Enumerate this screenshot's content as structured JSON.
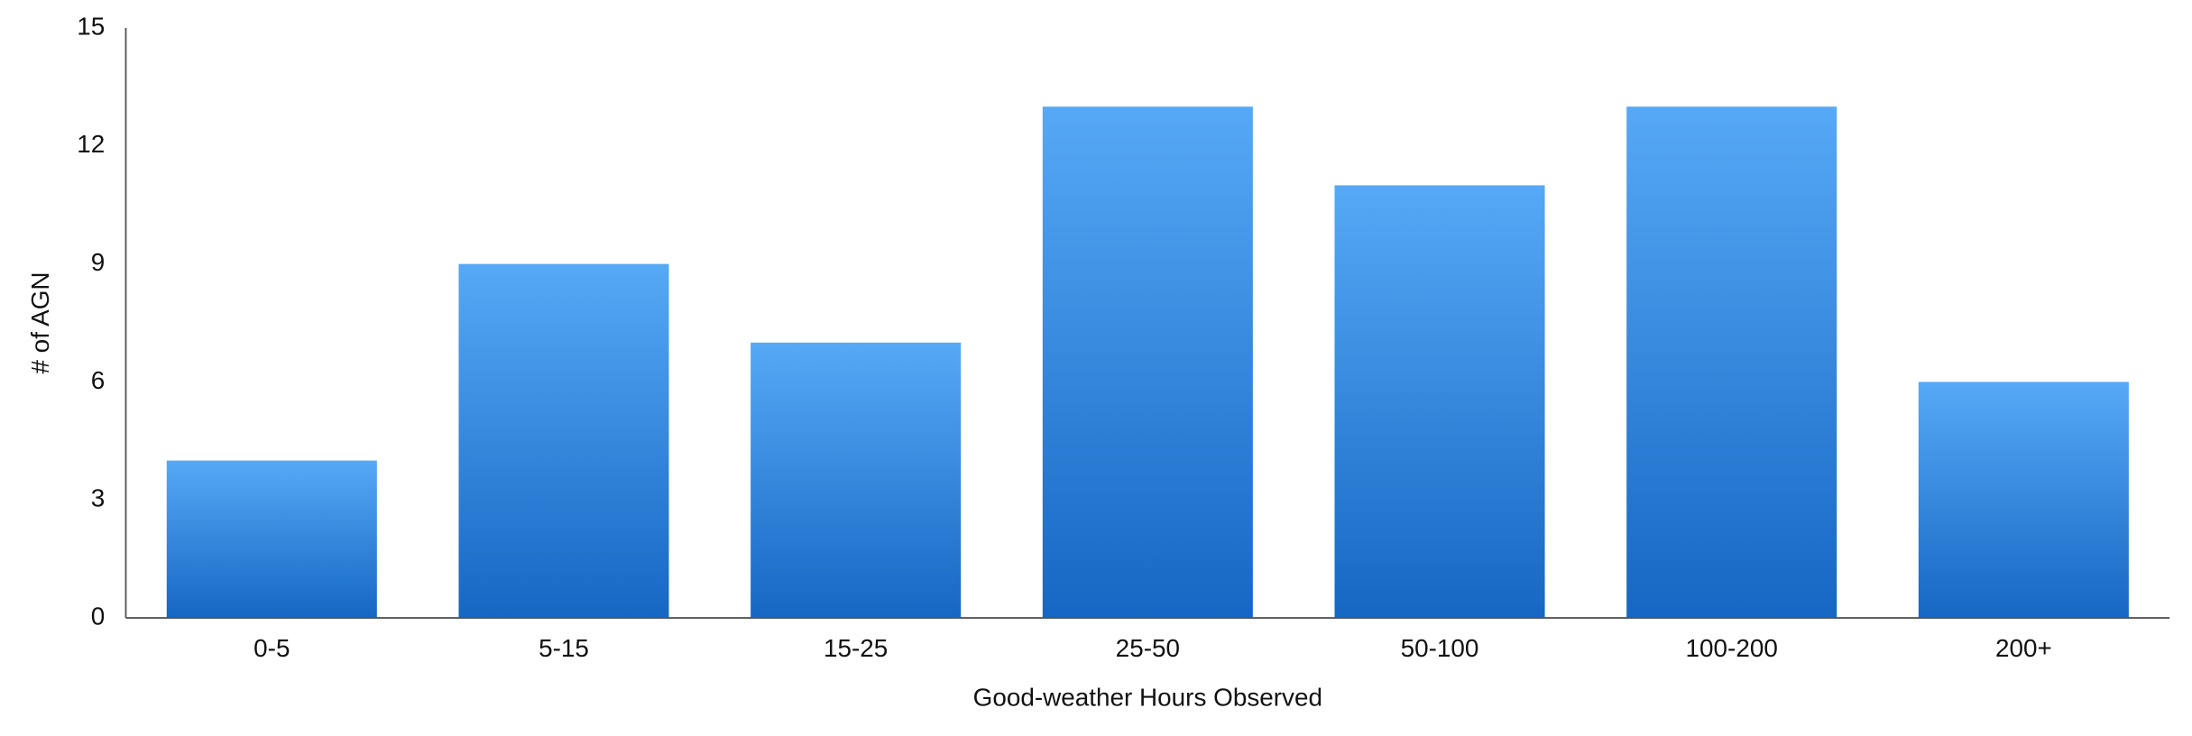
{
  "chart_data": {
    "type": "bar",
    "x_label": "Good-weather Hours Observed",
    "y_label": "# of AGN",
    "categories": [
      "0-5",
      "5-15",
      "15-25",
      "25-50",
      "50-100",
      "100-200",
      "200+"
    ],
    "values": [
      4,
      9,
      7,
      13,
      11,
      13,
      6
    ],
    "gradient": [
      "#56a9f6",
      "#1567c3"
    ],
    "ylim": [
      0,
      15
    ],
    "yticks": [
      0,
      3,
      6,
      9,
      12,
      15
    ],
    "grid": false
  }
}
